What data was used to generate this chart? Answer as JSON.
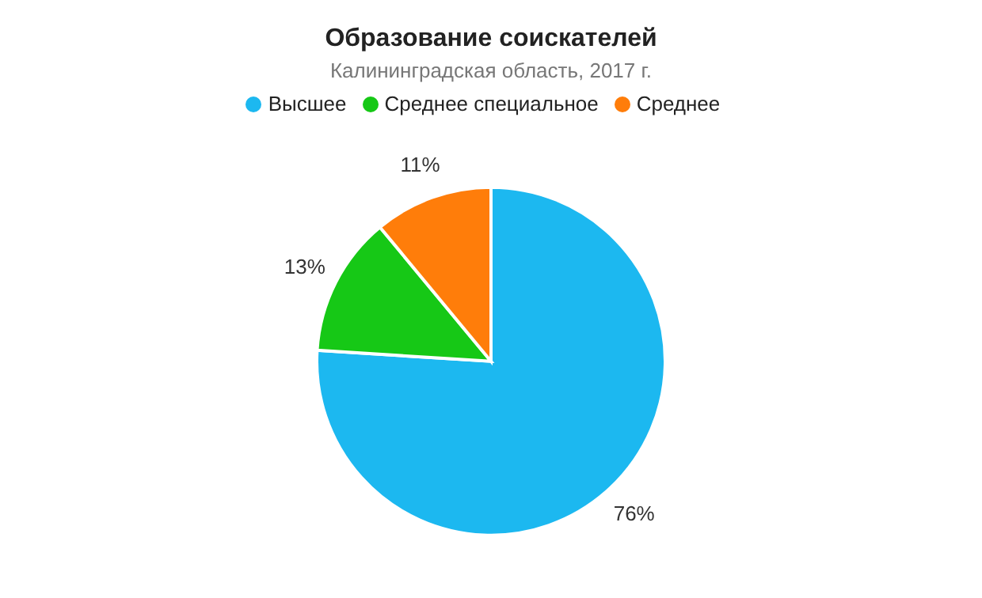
{
  "chart_data": {
    "type": "pie",
    "title": "Образование соискателей",
    "subtitle": "Калининградская область, 2017 г.",
    "categories": [
      "Высшее",
      "Среднее специальное",
      "Среднее"
    ],
    "values": [
      76,
      13,
      11
    ],
    "value_labels": [
      "76%",
      "13%",
      "11%"
    ],
    "colors": [
      "#1cb8f0",
      "#16c816",
      "#ff7d0a"
    ],
    "legend": "top"
  }
}
